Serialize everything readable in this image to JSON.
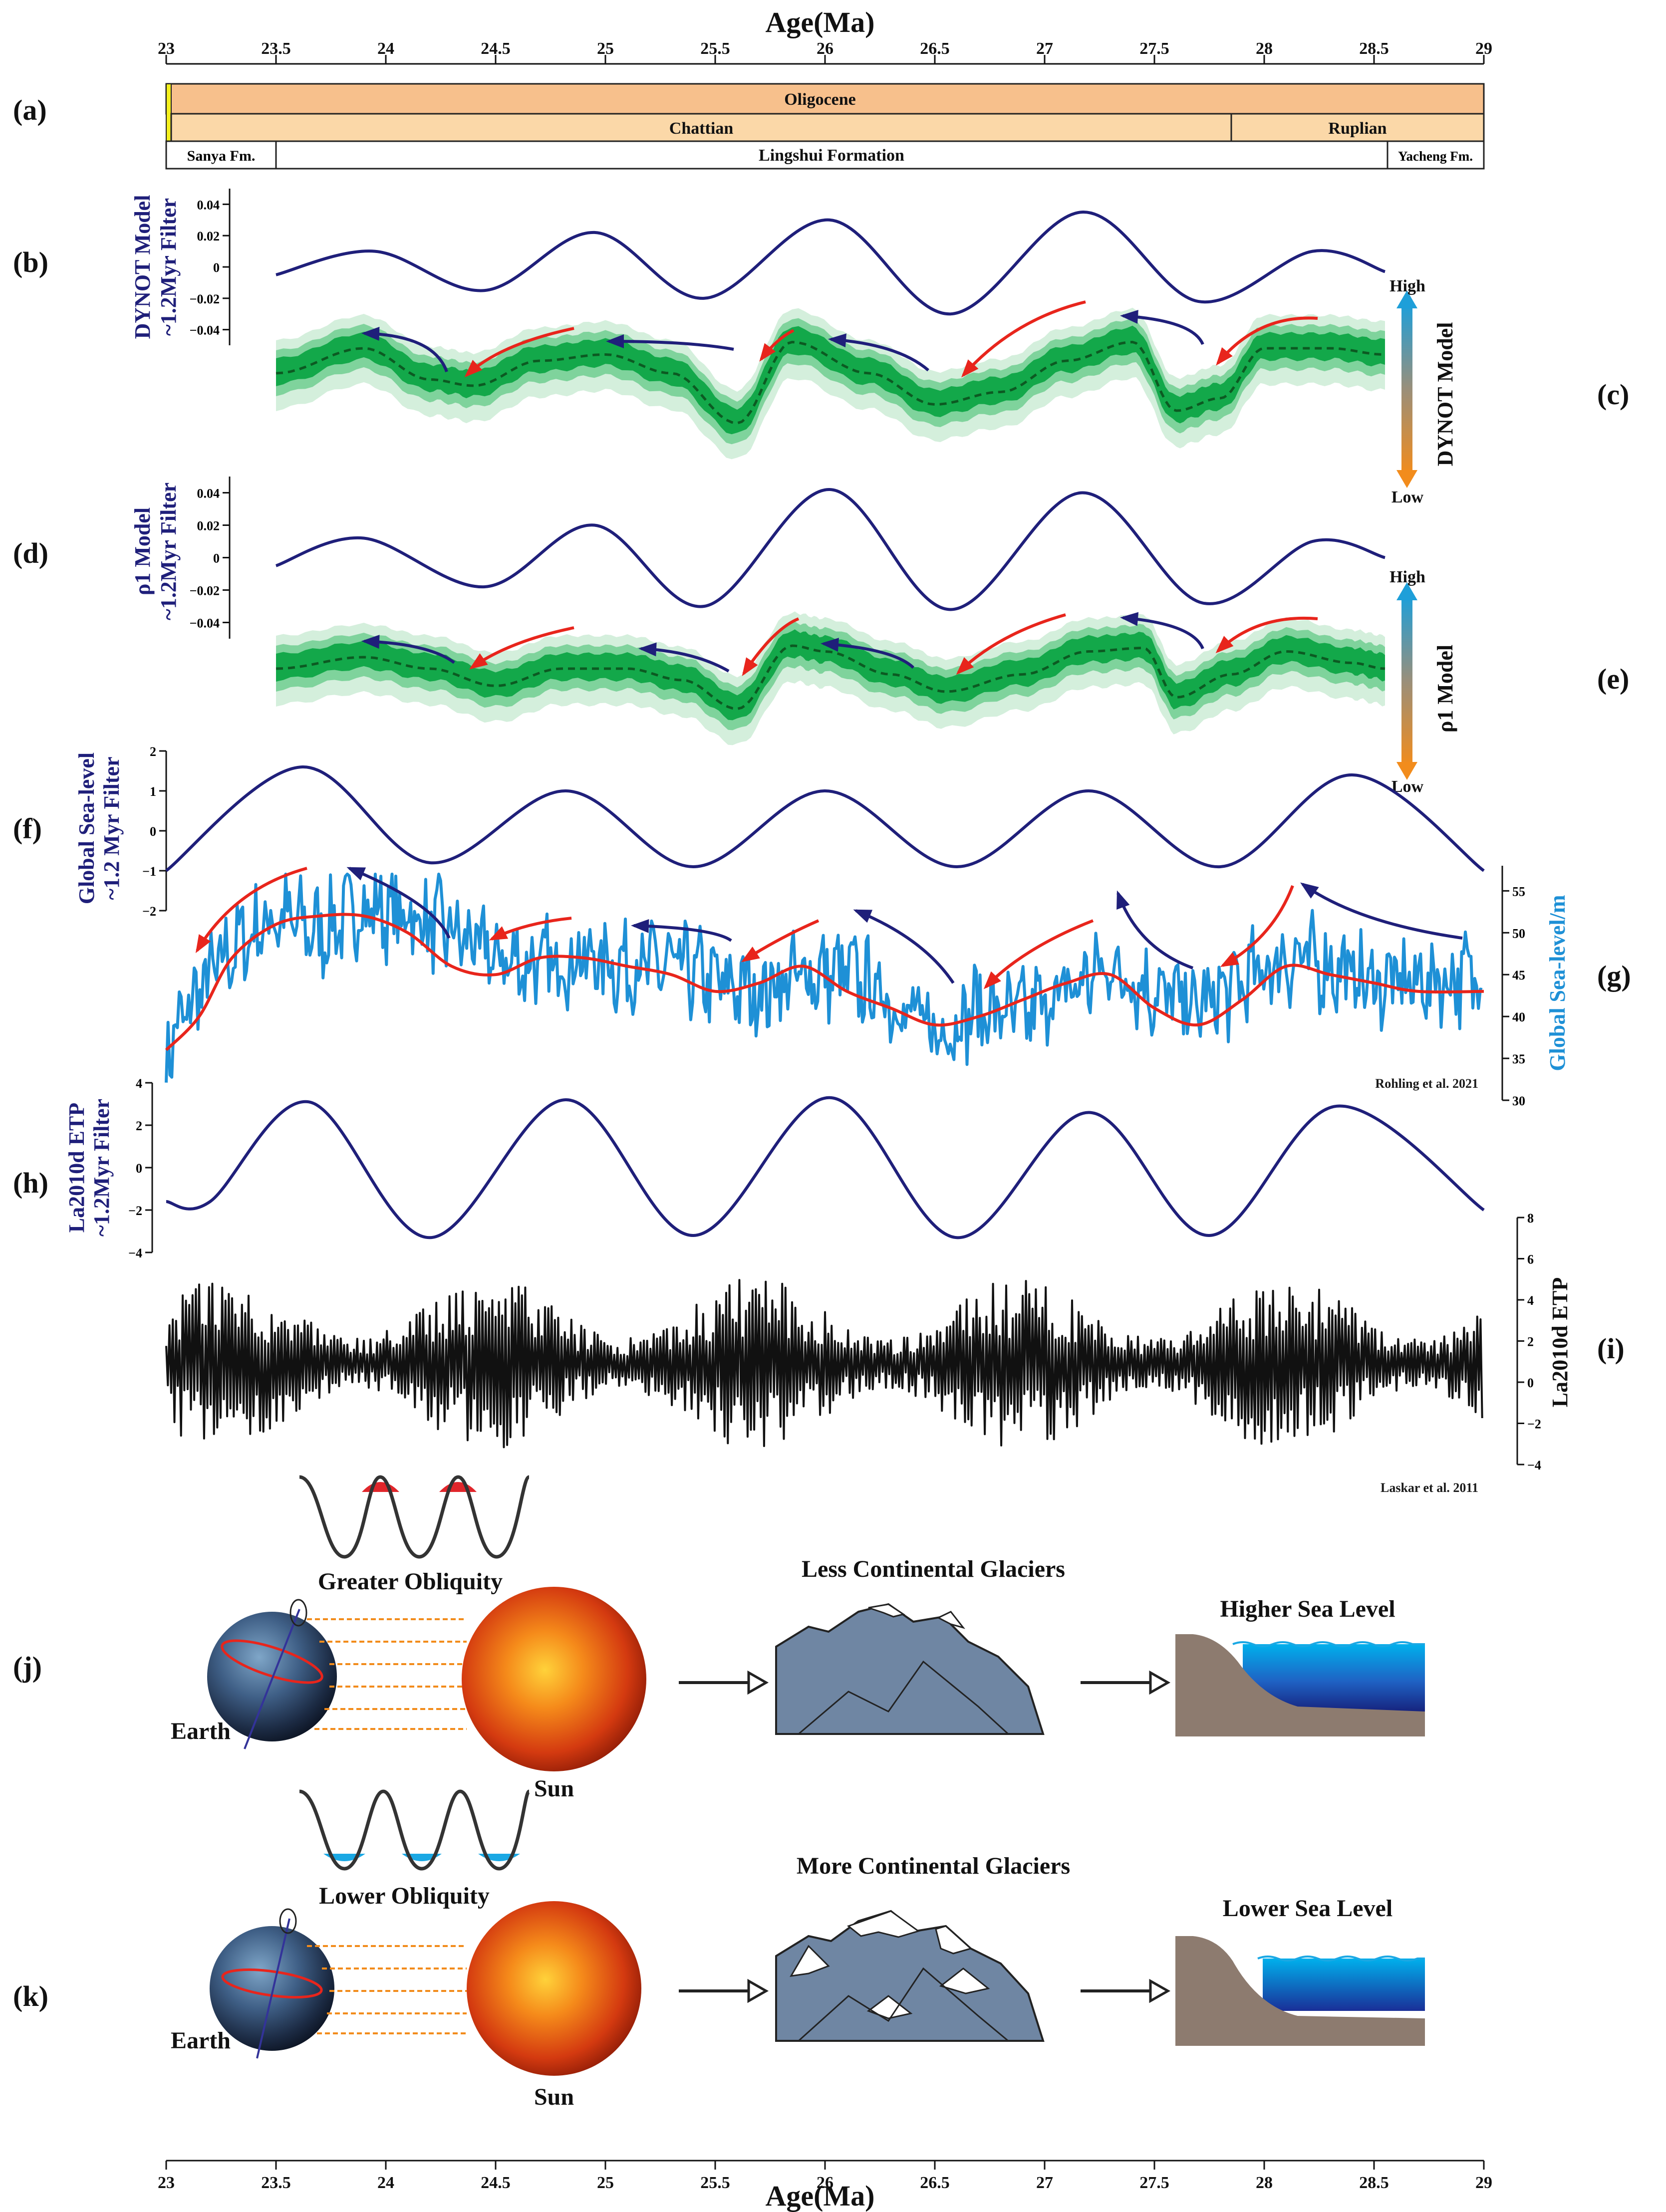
{
  "figure": {
    "x_axis_title": "Age(Ma)",
    "x_ticks": [
      "23",
      "23.5",
      "24",
      "24.5",
      "25",
      "25.5",
      "26",
      "26.5",
      "27",
      "27.5",
      "28",
      "28.5",
      "29"
    ],
    "panel_letters": [
      "(a)",
      "(b)",
      "(c)",
      "(d)",
      "(e)",
      "(f)",
      "(g)",
      "(h)",
      "(i)",
      "(j)",
      "(k)"
    ],
    "stratigraphy": {
      "epoch": "Oligocene",
      "stages": [
        {
          "label": "Chattian",
          "from": 23.03,
          "to": 27.82
        },
        {
          "label": "Ruplian",
          "from": 27.82,
          "to": 29
        }
      ],
      "formations": [
        {
          "label": "Sanya Fm.",
          "from": 23,
          "to": 23.5
        },
        {
          "label": "Lingshui Formation",
          "from": 23.5,
          "to": 28.55
        },
        {
          "label": "Yacheng Fm.",
          "from": 28.55,
          "to": 29
        }
      ]
    },
    "panel_b": {
      "ylabel_1": "DYNOT Model",
      "ylabel_2": "~1.2Myr Filter",
      "ticks": [
        "0.04",
        "0.02",
        "0",
        "−0.02",
        "−0.04"
      ]
    },
    "panel_c": {
      "side_label": "DYNOT Model",
      "high": "High",
      "low": "Low"
    },
    "panel_d": {
      "ylabel_1": "ρ1 Model",
      "ylabel_2": "~1.2Myr Filter",
      "ticks": [
        "0.04",
        "0.02",
        "0",
        "−0.02",
        "−0.04"
      ]
    },
    "panel_e": {
      "side_label": "ρ1 Model",
      "high": "High",
      "low": "Low"
    },
    "panel_f": {
      "ylabel_1": "Global Sea-level",
      "ylabel_2": "~1.2 Myr Filter",
      "ticks": [
        "2",
        "1",
        "0",
        "−1",
        "−2"
      ]
    },
    "panel_g": {
      "ylabel": "Global Sea-level/m",
      "ticks": [
        "55",
        "50",
        "45",
        "40",
        "35",
        "30"
      ],
      "citation": "Rohling  et al. 2021"
    },
    "panel_h": {
      "ylabel_1": "La2010d ETP",
      "ylabel_2": "~1.2Myr Filter",
      "ticks": [
        "4",
        "2",
        "0",
        "−2",
        "−4"
      ]
    },
    "panel_i": {
      "ylabel": "La2010d ETP",
      "ticks": [
        "8",
        "6",
        "4",
        "2",
        "0",
        "−2",
        "−4"
      ],
      "citation": "Laskar et al. 2011"
    },
    "panel_j": {
      "obliquity": "Greater  Obliquity",
      "glaciers": "Less Continental Glaciers",
      "sea": "Higher Sea Level",
      "earth": "Earth",
      "sun": "Sun"
    },
    "panel_k": {
      "obliquity": "Lower  Obliquity",
      "glaciers": "More Continental Glaciers",
      "sea": "Lower Sea Level",
      "earth": "Earth",
      "sun": "Sun"
    },
    "colors": {
      "navy": "#1f1f7a",
      "red": "#e8251c",
      "cyan": "#1e90d6",
      "green_dark": "#0a9a3c",
      "green_light": "#c9ecd5",
      "orange": "#f5c896",
      "orange_deep": "#f7a76a",
      "mountain": "#6f86a3",
      "ground": "#8d7b6f",
      "sea_deep": "#1a35a8",
      "sea_light": "#00a9e8"
    }
  },
  "chart_data": [
    {
      "type": "line",
      "panel": "(b)",
      "name": "DYNOT Model ~1.2Myr Filter",
      "x_unit": "Ma",
      "ylim": [
        -0.05,
        0.05
      ],
      "x": [
        23.5,
        23.95,
        24.45,
        24.95,
        25.45,
        26.02,
        26.57,
        27.17,
        27.7,
        28.22,
        28.55
      ],
      "values": [
        -0.005,
        0.01,
        -0.015,
        0.022,
        -0.02,
        0.03,
        -0.03,
        0.035,
        -0.022,
        0.01,
        -0.003
      ]
    },
    {
      "type": "area",
      "panel": "(c)",
      "name": "DYNOT Model (relative)",
      "x_unit": "Ma",
      "ylim": [
        0,
        1
      ],
      "x": [
        23.5,
        23.9,
        24.2,
        24.4,
        24.7,
        25.0,
        25.3,
        25.6,
        25.85,
        26.2,
        26.5,
        26.8,
        27.1,
        27.4,
        27.6,
        27.8,
        28.0,
        28.3,
        28.55
      ],
      "values": [
        0.6,
        0.8,
        0.55,
        0.5,
        0.7,
        0.75,
        0.6,
        0.2,
        0.85,
        0.6,
        0.35,
        0.45,
        0.7,
        0.85,
        0.3,
        0.4,
        0.8,
        0.8,
        0.75
      ]
    },
    {
      "type": "line",
      "panel": "(d)",
      "name": "ρ1 Model ~1.2Myr Filter",
      "x_unit": "Ma",
      "ylim": [
        -0.05,
        0.05
      ],
      "x": [
        23.5,
        23.9,
        24.45,
        24.95,
        25.45,
        26.02,
        26.57,
        27.17,
        27.72,
        28.22,
        28.55
      ],
      "values": [
        -0.005,
        0.012,
        -0.018,
        0.02,
        -0.03,
        0.042,
        -0.032,
        0.04,
        -0.028,
        0.01,
        0.0
      ]
    },
    {
      "type": "area",
      "panel": "(e)",
      "name": "ρ1 Model (relative)",
      "x_unit": "Ma",
      "ylim": [
        0,
        1
      ],
      "x": [
        23.5,
        23.9,
        24.2,
        24.5,
        24.8,
        25.1,
        25.35,
        25.6,
        25.85,
        26.0,
        26.3,
        26.55,
        26.9,
        27.2,
        27.45,
        27.6,
        27.85,
        28.1,
        28.4,
        28.55
      ],
      "values": [
        0.6,
        0.7,
        0.6,
        0.45,
        0.6,
        0.6,
        0.5,
        0.25,
        0.8,
        0.75,
        0.55,
        0.4,
        0.55,
        0.75,
        0.78,
        0.35,
        0.55,
        0.75,
        0.65,
        0.6
      ]
    },
    {
      "type": "line",
      "panel": "(f)",
      "name": "Global Sea-level ~1.2 Myr Filter",
      "x_unit": "Ma",
      "ylim": [
        -2,
        2
      ],
      "x": [
        23,
        23.62,
        24.2,
        24.82,
        25.4,
        26.0,
        26.6,
        27.2,
        27.8,
        28.4,
        29.0
      ],
      "values": [
        -1,
        1.6,
        -0.8,
        1.0,
        -0.9,
        1.0,
        -0.9,
        1.0,
        -0.9,
        1.4,
        -1.0
      ]
    },
    {
      "type": "line",
      "panel": "(g)",
      "name": "Global Sea-level/m",
      "x_unit": "Ma",
      "ylim": [
        30,
        58
      ],
      "x": [
        23.0,
        23.15,
        23.3,
        23.5,
        23.7,
        23.9,
        24.1,
        24.3,
        24.5,
        24.7,
        24.9,
        25.1,
        25.3,
        25.5,
        25.7,
        25.9,
        26.1,
        26.3,
        26.5,
        26.7,
        26.9,
        27.1,
        27.3,
        27.5,
        27.7,
        27.9,
        28.1,
        28.3,
        28.5,
        28.7,
        29.0
      ],
      "values": [
        36,
        43,
        48,
        52,
        50,
        53,
        52,
        50,
        47,
        46,
        47,
        46,
        46,
        44,
        43,
        45,
        45,
        42,
        38,
        41,
        40,
        43,
        46,
        43,
        41,
        44,
        47,
        46,
        44,
        44,
        45
      ],
      "smooth": [
        36,
        40,
        47,
        51,
        52,
        52,
        50,
        46,
        45,
        47,
        47,
        46,
        45,
        43,
        44,
        46,
        43,
        41,
        39,
        40,
        42,
        44,
        45,
        41,
        39,
        42,
        46,
        45,
        44,
        43,
        43
      ]
    },
    {
      "type": "line",
      "panel": "(h)",
      "name": "La2010d ETP ~1.2Myr Filter",
      "x_unit": "Ma",
      "ylim": [
        -4,
        4
      ],
      "x": [
        23,
        23.2,
        23.65,
        24.2,
        24.82,
        25.4,
        26.02,
        26.6,
        27.2,
        27.75,
        28.33,
        29.0
      ],
      "values": [
        -1.6,
        -1.6,
        3.1,
        -3.3,
        3.2,
        -3.2,
        3.3,
        -3.3,
        2.6,
        -3.2,
        2.9,
        -2.0
      ]
    },
    {
      "type": "line",
      "panel": "(i)",
      "name": "La2010d ETP",
      "x_unit": "Ma",
      "ylim": [
        -4,
        8
      ],
      "x": [
        23,
        23.5,
        24,
        24.5,
        25,
        25.5,
        26,
        26.5,
        27,
        27.5,
        28,
        28.5,
        29
      ],
      "values": [
        0.5,
        1.0,
        0.8,
        0.6,
        0.9,
        0.7,
        1.0,
        0.8,
        1.0,
        1.2,
        0.9,
        0.8,
        0.6
      ]
    }
  ]
}
